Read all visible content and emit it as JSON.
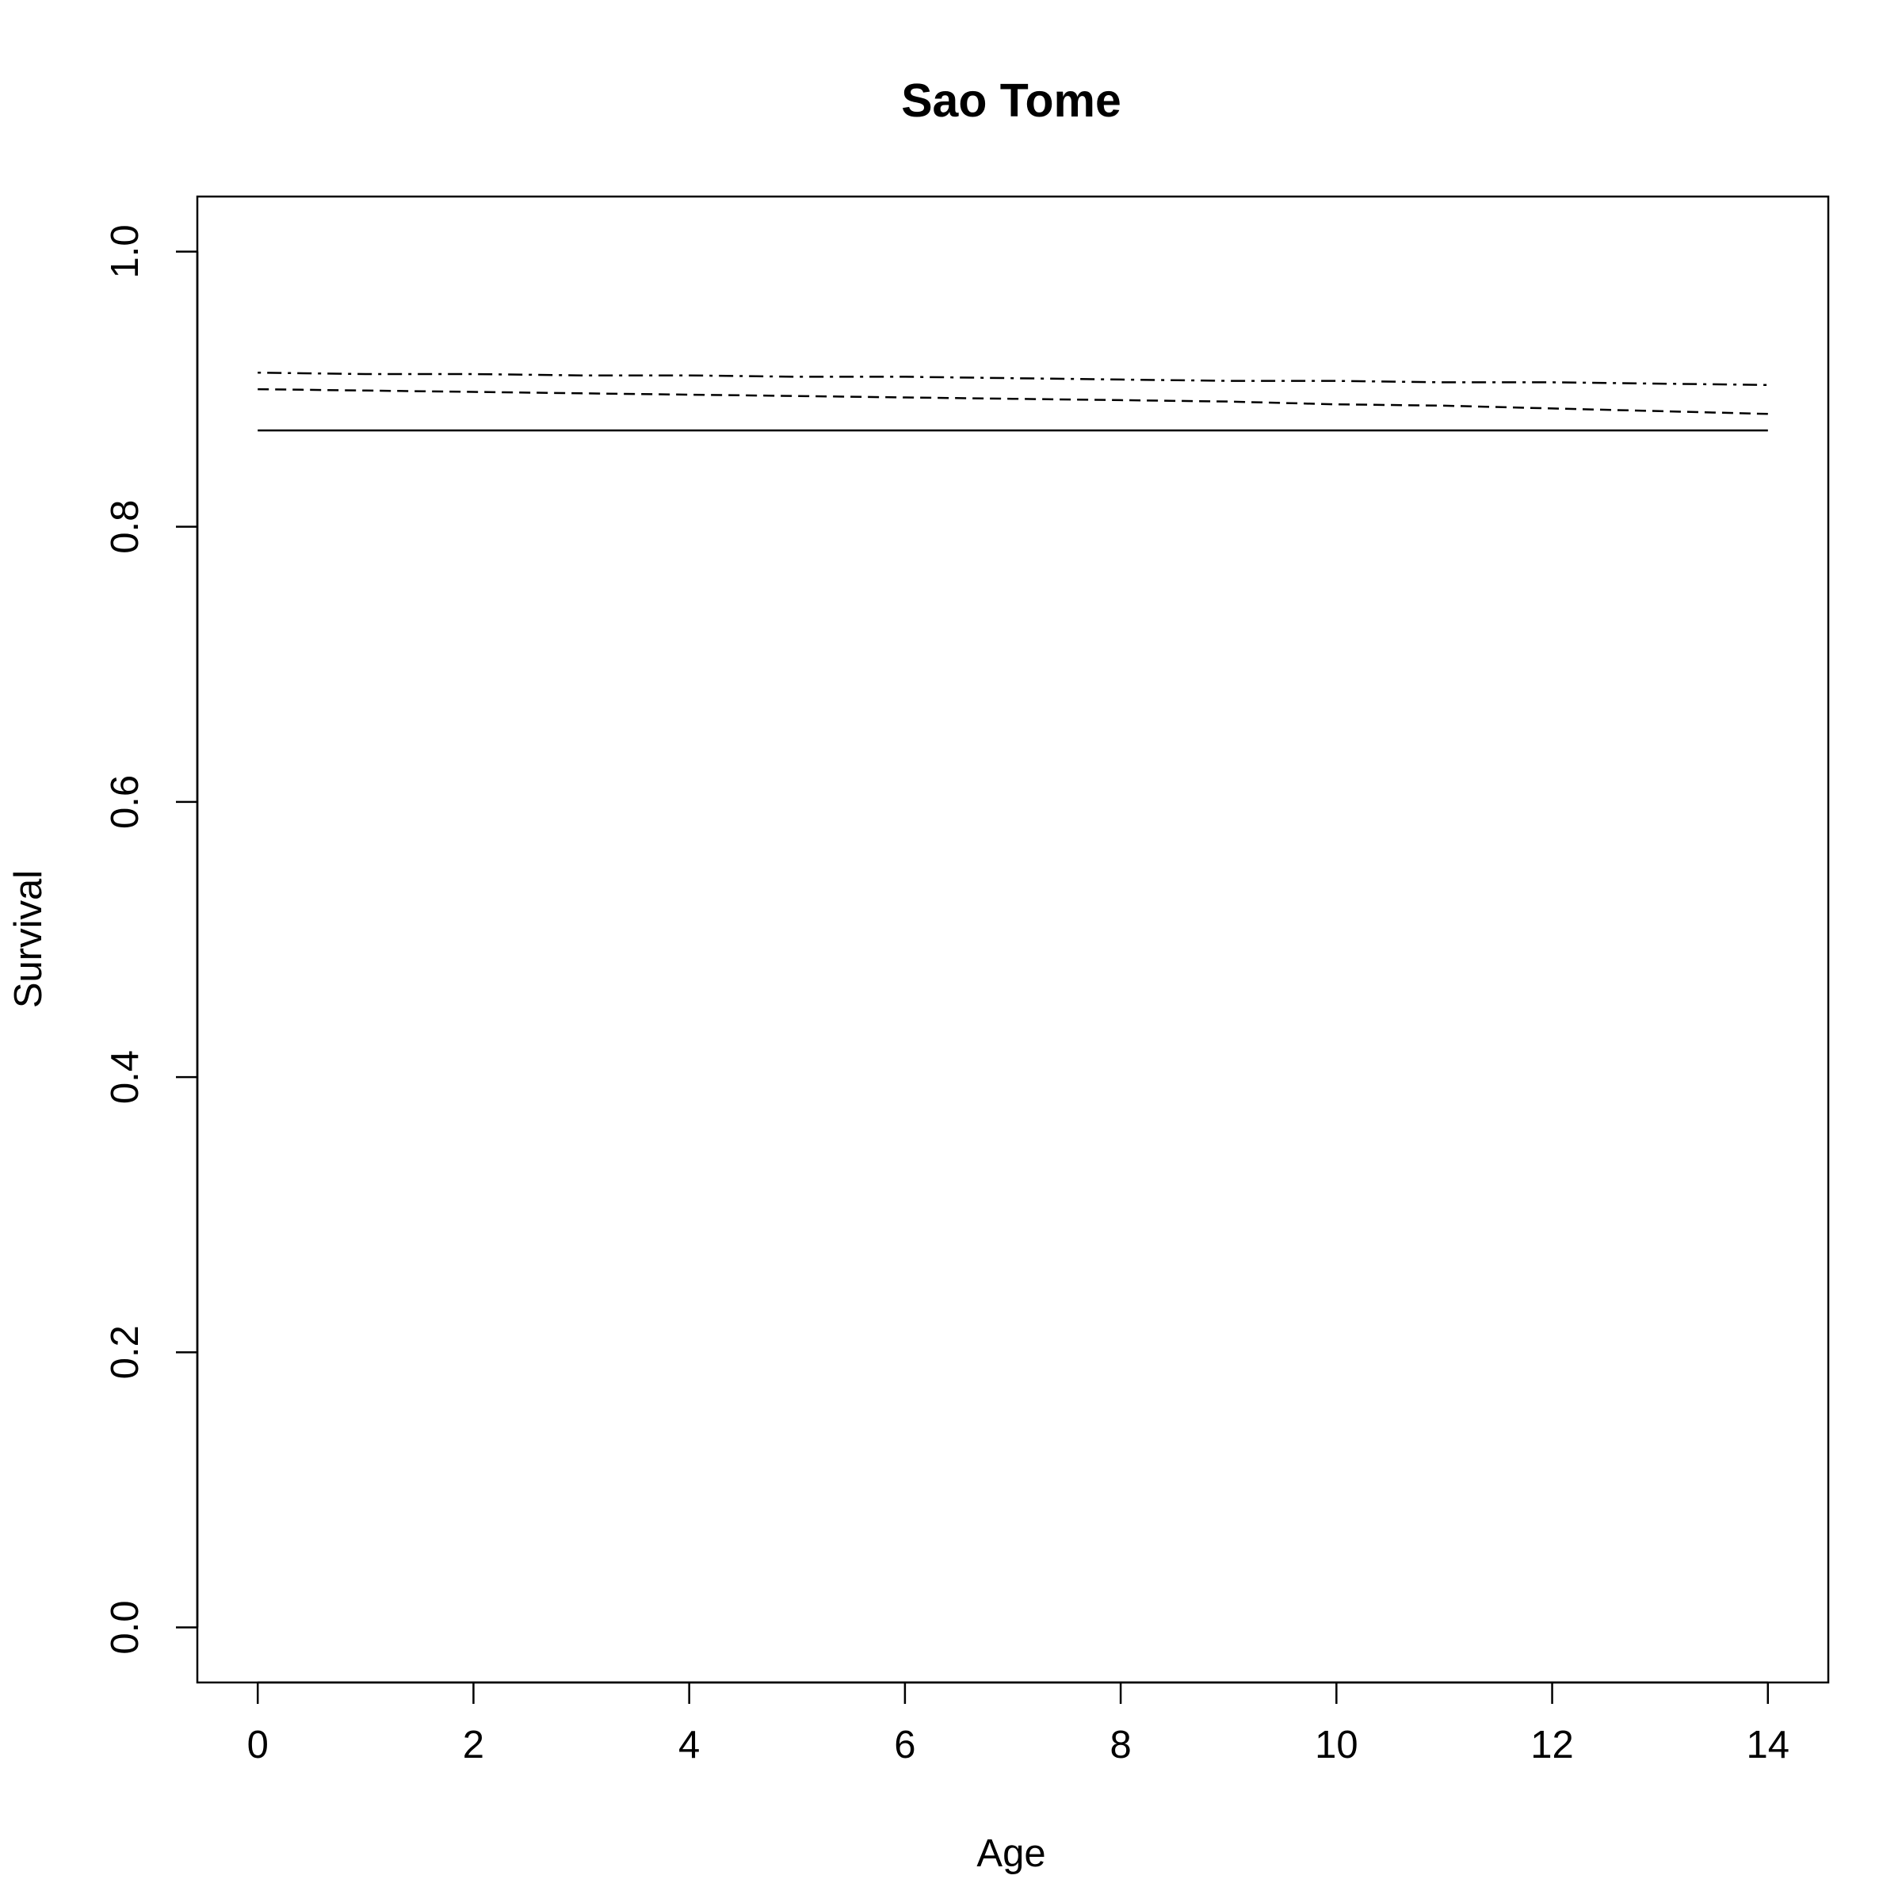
{
  "chart_data": {
    "type": "line",
    "title": "Sao Tome",
    "xlabel": "Age",
    "ylabel": "Survival",
    "xlim": [
      -0.56,
      14.56
    ],
    "ylim": [
      -0.04,
      1.04
    ],
    "x_ticks": [
      "0",
      "2",
      "4",
      "6",
      "8",
      "10",
      "12",
      "14"
    ],
    "y_ticks": [
      "0.0",
      "0.2",
      "0.4",
      "0.6",
      "0.8",
      "1.0"
    ],
    "grid": false,
    "legend": "none",
    "x": [
      0,
      1,
      2,
      3,
      4,
      5,
      6,
      7,
      8,
      9,
      10,
      11,
      12,
      13,
      14
    ],
    "series": [
      {
        "line_style": "solid",
        "values": [
          0.87,
          0.87,
          0.87,
          0.87,
          0.87,
          0.87,
          0.87,
          0.87,
          0.87,
          0.87,
          0.87,
          0.87,
          0.87,
          0.87,
          0.87
        ]
      },
      {
        "line_style": "dashed",
        "values": [
          0.9,
          0.899,
          0.898,
          0.897,
          0.896,
          0.895,
          0.894,
          0.893,
          0.892,
          0.891,
          0.889,
          0.888,
          0.886,
          0.884,
          0.882
        ]
      },
      {
        "line_style": "dotdash",
        "values": [
          0.912,
          0.911,
          0.911,
          0.91,
          0.91,
          0.909,
          0.909,
          0.908,
          0.907,
          0.906,
          0.906,
          0.905,
          0.905,
          0.904,
          0.903
        ]
      }
    ],
    "colors": {
      "line": "#000000",
      "axis": "#000000",
      "background": "#ffffff"
    }
  }
}
